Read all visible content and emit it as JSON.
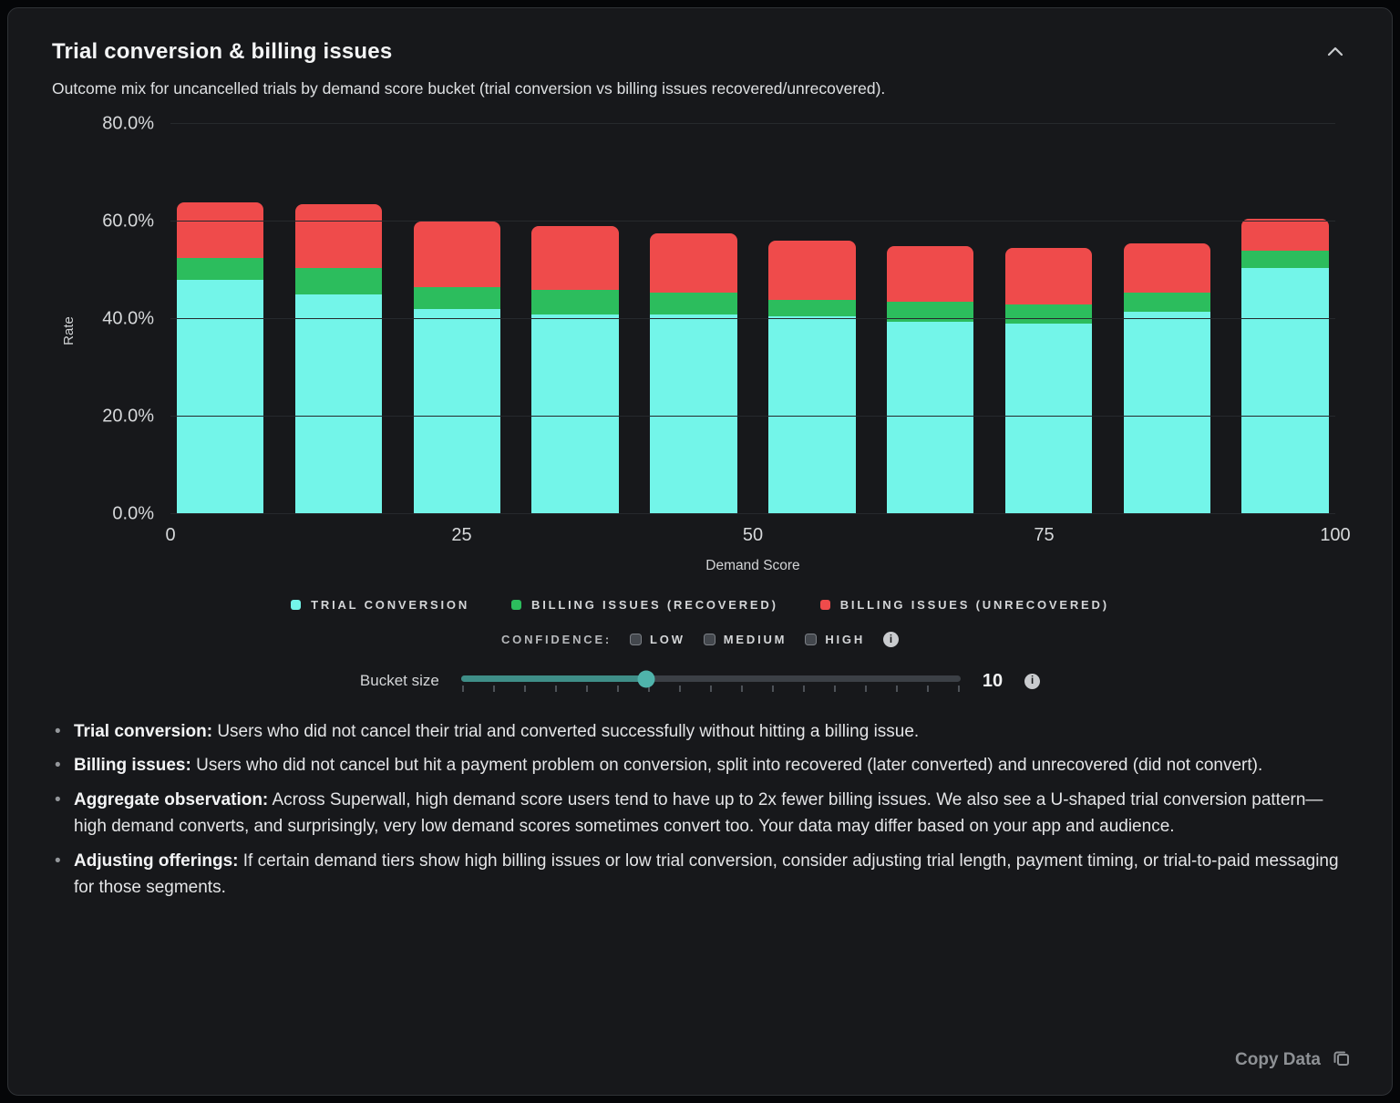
{
  "card": {
    "title": "Trial conversion & billing issues",
    "subtitle": "Outcome mix for uncancelled trials by demand score bucket (trial conversion vs billing issues recovered/unrecovered).",
    "copy_button": "Copy Data"
  },
  "chart_data": {
    "type": "bar",
    "stacked": true,
    "title": "Trial conversion & billing issues",
    "xlabel": "Demand Score",
    "ylabel": "Rate",
    "xlim": [
      0,
      100
    ],
    "ylim": [
      0,
      80
    ],
    "grid": true,
    "legend_position": "bottom",
    "y_ticks": [
      {
        "label": "0.0%",
        "value": 0
      },
      {
        "label": "20.0%",
        "value": 20
      },
      {
        "label": "40.0%",
        "value": 40
      },
      {
        "label": "60.0%",
        "value": 60
      },
      {
        "label": "80.0%",
        "value": 80
      }
    ],
    "x_ticks": [
      0,
      25,
      50,
      75,
      100
    ],
    "categories": [
      "0-10",
      "10-20",
      "20-30",
      "30-40",
      "40-50",
      "50-60",
      "60-70",
      "70-80",
      "80-90",
      "90-100"
    ],
    "series": [
      {
        "name": "Trial conversion",
        "color": "#73f5e9",
        "values": [
          48,
          45,
          42,
          41,
          41,
          40.5,
          39.5,
          39,
          41.5,
          50.5
        ]
      },
      {
        "name": "Billing issues (recovered)",
        "color": "#2cbd5d",
        "values": [
          4.5,
          5.5,
          4.5,
          5,
          4.5,
          3.5,
          4,
          4,
          4,
          3.5
        ]
      },
      {
        "name": "Billing issues (unrecovered)",
        "color": "#ef4b4b",
        "values": [
          11.5,
          13,
          13.5,
          13,
          12,
          12,
          11.5,
          11.5,
          10,
          6.5
        ]
      }
    ],
    "legend": [
      "TRIAL CONVERSION",
      "BILLING ISSUES (RECOVERED)",
      "BILLING ISSUES (UNRECOVERED)"
    ]
  },
  "confidence": {
    "label": "CONFIDENCE:",
    "options": [
      {
        "label": "LOW",
        "checked": false
      },
      {
        "label": "MEDIUM",
        "checked": false
      },
      {
        "label": "HIGH",
        "checked": false
      }
    ],
    "info_icon": "info-icon"
  },
  "bucket": {
    "label": "Bucket size",
    "value": "10",
    "thumb_pct": 37,
    "info_icon": "info-icon"
  },
  "notes": [
    {
      "lead": "Trial conversion:",
      "text": " Users who did not cancel their trial and converted successfully without hitting a billing issue."
    },
    {
      "lead": "Billing issues:",
      "text": " Users who did not cancel but hit a payment problem on conversion, split into recovered (later converted) and unrecovered (did not convert)."
    },
    {
      "lead": "Aggregate observation:",
      "text": " Across Superwall, high demand score users tend to have up to 2x fewer billing issues. We also see a U-shaped trial conversion pattern—high demand converts, and surprisingly, very low demand scores sometimes convert too. Your data may differ based on your app and audience."
    },
    {
      "lead": "Adjusting offerings:",
      "text": " If certain demand tiers show high billing issues or low trial conversion, consider adjusting trial length, payment timing, or trial-to-paid messaging for those segments."
    }
  ]
}
